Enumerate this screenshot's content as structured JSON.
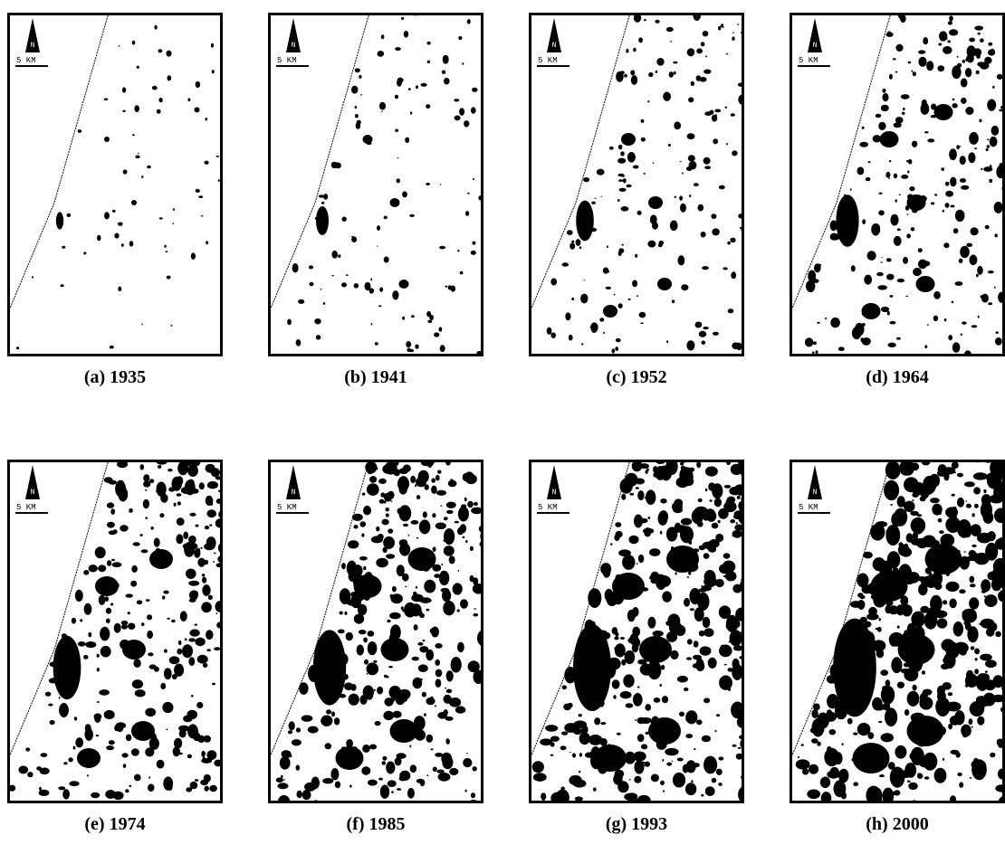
{
  "panels": [
    {
      "caption": "(a) 1935",
      "north": "N",
      "scale": "5 KM"
    },
    {
      "caption": "(b) 1941",
      "north": "N",
      "scale": "5 KM"
    },
    {
      "caption": "(c) 1952",
      "north": "N",
      "scale": "5 KM"
    },
    {
      "caption": "(d) 1964",
      "north": "N",
      "scale": "5 KM"
    },
    {
      "caption": "(e) 1974",
      "north": "N",
      "scale": "5 KM"
    },
    {
      "caption": "(f) 1985",
      "north": "N",
      "scale": "5 KM"
    },
    {
      "caption": "(g) 1993",
      "north": "N",
      "scale": "5 KM"
    },
    {
      "caption": "(h) 2000",
      "north": "N",
      "scale": "5 KM"
    }
  ]
}
